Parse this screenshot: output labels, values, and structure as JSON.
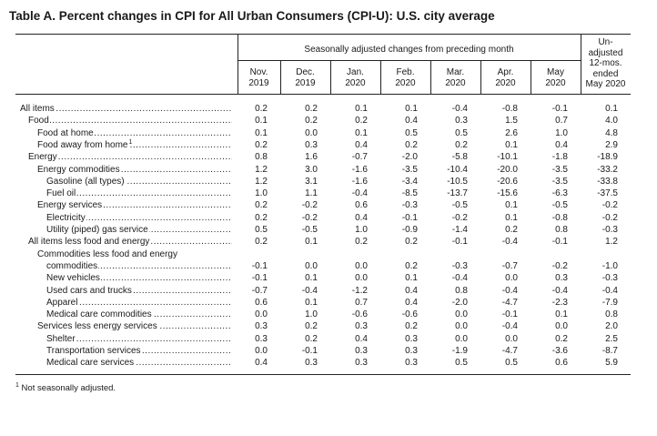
{
  "title": "Table A. Percent changes in CPI for All Urban Consumers (CPI-U): U.S. city average",
  "header": {
    "group_label": "Seasonally adjusted changes from preceding month",
    "columns": [
      {
        "line1": "Nov.",
        "line2": "2019"
      },
      {
        "line1": "Dec.",
        "line2": "2019"
      },
      {
        "line1": "Jan.",
        "line2": "2020"
      },
      {
        "line1": "Feb.",
        "line2": "2020"
      },
      {
        "line1": "Mar.",
        "line2": "2020"
      },
      {
        "line1": "Apr.",
        "line2": "2020"
      },
      {
        "line1": "May",
        "line2": "2020"
      }
    ],
    "unadjusted_lines": [
      "Un-",
      "adjusted",
      "12-mos.",
      "ended",
      "May 2020"
    ]
  },
  "rows": [
    {
      "label": "All items",
      "indent": 0,
      "values": [
        "0.2",
        "0.2",
        "0.1",
        "0.1",
        "-0.4",
        "-0.8",
        "-0.1",
        "0.1"
      ]
    },
    {
      "label": "Food",
      "indent": 1,
      "values": [
        "0.1",
        "0.2",
        "0.2",
        "0.4",
        "0.3",
        "1.5",
        "0.7",
        "4.0"
      ]
    },
    {
      "label": "Food at home",
      "indent": 2,
      "values": [
        "0.1",
        "0.0",
        "0.1",
        "0.5",
        "0.5",
        "2.6",
        "1.0",
        "4.8"
      ]
    },
    {
      "label": "Food away from home",
      "sup": "1",
      "indent": 2,
      "values": [
        "0.2",
        "0.3",
        "0.4",
        "0.2",
        "0.2",
        "0.1",
        "0.4",
        "2.9"
      ]
    },
    {
      "label": "Energy",
      "indent": 1,
      "values": [
        "0.8",
        "1.6",
        "-0.7",
        "-2.0",
        "-5.8",
        "-10.1",
        "-1.8",
        "-18.9"
      ]
    },
    {
      "label": "Energy commodities",
      "indent": 2,
      "values": [
        "1.2",
        "3.0",
        "-1.6",
        "-3.5",
        "-10.4",
        "-20.0",
        "-3.5",
        "-33.2"
      ]
    },
    {
      "label": "Gasoline (all types)",
      "indent": 3,
      "values": [
        "1.2",
        "3.1",
        "-1.6",
        "-3.4",
        "-10.5",
        "-20.6",
        "-3.5",
        "-33.8"
      ]
    },
    {
      "label": "Fuel oil",
      "indent": 3,
      "values": [
        "1.0",
        "1.1",
        "-0.4",
        "-8.5",
        "-13.7",
        "-15.6",
        "-6.3",
        "-37.5"
      ]
    },
    {
      "label": "Energy services",
      "indent": 2,
      "values": [
        "0.2",
        "-0.2",
        "0.6",
        "-0.3",
        "-0.5",
        "0.1",
        "-0.5",
        "-0.2"
      ]
    },
    {
      "label": "Electricity",
      "indent": 3,
      "values": [
        "0.2",
        "-0.2",
        "0.4",
        "-0.1",
        "-0.2",
        "0.1",
        "-0.8",
        "-0.2"
      ]
    },
    {
      "label": "Utility (piped) gas service",
      "indent": 3,
      "values": [
        "0.5",
        "-0.5",
        "1.0",
        "-0.9",
        "-1.4",
        "0.2",
        "0.8",
        "-0.3"
      ]
    },
    {
      "label": "All items less food and energy",
      "indent": 1,
      "values": [
        "0.2",
        "0.1",
        "0.2",
        "0.2",
        "-0.1",
        "-0.4",
        "-0.1",
        "1.2"
      ]
    },
    {
      "label": "Commodities less food and energy",
      "indent": 2,
      "values": null
    },
    {
      "label": "commodities",
      "indent": 3,
      "values": [
        "-0.1",
        "0.0",
        "0.0",
        "0.2",
        "-0.3",
        "-0.7",
        "-0.2",
        "-1.0"
      ]
    },
    {
      "label": "New vehicles",
      "indent": 3,
      "values": [
        "-0.1",
        "0.1",
        "0.0",
        "0.1",
        "-0.4",
        "0.0",
        "0.3",
        "-0.3"
      ]
    },
    {
      "label": "Used cars and trucks",
      "indent": 3,
      "values": [
        "-0.7",
        "-0.4",
        "-1.2",
        "0.4",
        "0.8",
        "-0.4",
        "-0.4",
        "-0.4"
      ]
    },
    {
      "label": "Apparel",
      "indent": 3,
      "values": [
        "0.6",
        "0.1",
        "0.7",
        "0.4",
        "-2.0",
        "-4.7",
        "-2.3",
        "-7.9"
      ]
    },
    {
      "label": "Medical care commodities",
      "indent": 3,
      "values": [
        "0.0",
        "1.0",
        "-0.6",
        "-0.6",
        "0.0",
        "-0.1",
        "0.1",
        "0.8"
      ]
    },
    {
      "label": "Services less energy services",
      "indent": 2,
      "values": [
        "0.3",
        "0.2",
        "0.3",
        "0.2",
        "0.0",
        "-0.4",
        "0.0",
        "2.0"
      ]
    },
    {
      "label": "Shelter",
      "indent": 3,
      "values": [
        "0.3",
        "0.2",
        "0.4",
        "0.3",
        "0.0",
        "0.0",
        "0.2",
        "2.5"
      ]
    },
    {
      "label": "Transportation services",
      "indent": 3,
      "values": [
        "0.0",
        "-0.1",
        "0.3",
        "0.3",
        "-1.9",
        "-4.7",
        "-3.6",
        "-8.7"
      ]
    },
    {
      "label": "Medical care services",
      "indent": 3,
      "values": [
        "0.4",
        "0.3",
        "0.3",
        "0.3",
        "0.5",
        "0.5",
        "0.6",
        "5.9"
      ]
    }
  ],
  "footnote": {
    "sup": "1",
    "text": "Not seasonally adjusted."
  }
}
